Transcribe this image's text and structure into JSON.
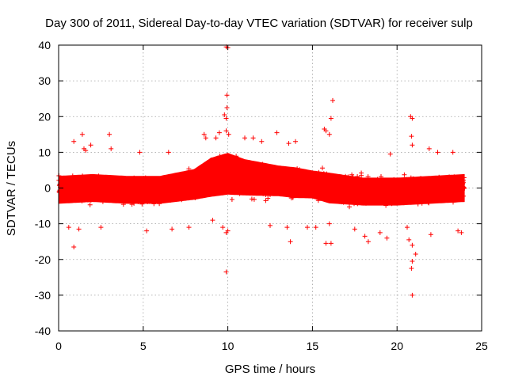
{
  "chart_data": {
    "type": "scatter",
    "title": "Day 300 of 2011, Sidereal Day-to-day VTEC variation (SDTVAR) for receiver sulp",
    "xlabel": "GPS time / hours",
    "ylabel": "SDTVAR / TECUs",
    "xlim": [
      0,
      25
    ],
    "ylim": [
      -40,
      40
    ],
    "xticks": [
      0,
      5,
      10,
      15,
      20,
      25
    ],
    "yticks": [
      -40,
      -30,
      -20,
      -10,
      0,
      10,
      20,
      30,
      40
    ],
    "grid": true,
    "marker": "+",
    "series": [
      {
        "name": "SDTVAR",
        "color": "#ff0000",
        "x_range": [
          0,
          24
        ],
        "band_center": [
          [
            0,
            -0.5
          ],
          [
            2,
            0
          ],
          [
            4,
            -0.5
          ],
          [
            6,
            -0.5
          ],
          [
            8,
            1
          ],
          [
            9,
            3
          ],
          [
            10,
            4
          ],
          [
            11,
            3
          ],
          [
            12,
            2.5
          ],
          [
            13,
            2
          ],
          [
            14,
            1.5
          ],
          [
            15,
            1
          ],
          [
            16,
            0
          ],
          [
            18,
            -1
          ],
          [
            20,
            -1
          ],
          [
            22,
            -0.5
          ],
          [
            24,
            0
          ]
        ],
        "band_halfwidth": [
          [
            0,
            5
          ],
          [
            2,
            5
          ],
          [
            4,
            5
          ],
          [
            6,
            5
          ],
          [
            8,
            5.5
          ],
          [
            9,
            7
          ],
          [
            10,
            7.5
          ],
          [
            11,
            6.5
          ],
          [
            12,
            6
          ],
          [
            13,
            5.5
          ],
          [
            14,
            5.5
          ],
          [
            15,
            5
          ],
          [
            16,
            5.5
          ],
          [
            18,
            5
          ],
          [
            20,
            5
          ],
          [
            22,
            5
          ],
          [
            24,
            5
          ]
        ],
        "outliers": [
          {
            "x": 9.9,
            "y": 39.5
          },
          {
            "x": 10.0,
            "y": 39.3
          },
          {
            "x": 9.95,
            "y": 26
          },
          {
            "x": 9.8,
            "y": 20.5
          },
          {
            "x": 9.9,
            "y": 19.5
          },
          {
            "x": 9.9,
            "y": 16
          },
          {
            "x": 9.95,
            "y": 22.5
          },
          {
            "x": 10.05,
            "y": 15
          },
          {
            "x": 9.9,
            "y": -23.5
          },
          {
            "x": 9.9,
            "y": -12.5
          },
          {
            "x": 10.0,
            "y": -12
          },
          {
            "x": 9.1,
            "y": -9
          },
          {
            "x": 9.7,
            "y": -11
          },
          {
            "x": 16.2,
            "y": 24.5
          },
          {
            "x": 15.8,
            "y": 16
          },
          {
            "x": 16.0,
            "y": 15
          },
          {
            "x": 15.7,
            "y": 16.5
          },
          {
            "x": 16.1,
            "y": 19.5
          },
          {
            "x": 15.8,
            "y": -15.5
          },
          {
            "x": 16.1,
            "y": -15.5
          },
          {
            "x": 15.2,
            "y": -11
          },
          {
            "x": 16.0,
            "y": -10
          },
          {
            "x": 20.8,
            "y": 20
          },
          {
            "x": 20.9,
            "y": 19.5
          },
          {
            "x": 20.85,
            "y": 14.5
          },
          {
            "x": 20.9,
            "y": 12
          },
          {
            "x": 20.7,
            "y": -14.5
          },
          {
            "x": 20.9,
            "y": -16
          },
          {
            "x": 20.9,
            "y": -20.5
          },
          {
            "x": 20.85,
            "y": -22.5
          },
          {
            "x": 21.1,
            "y": -18.5
          },
          {
            "x": 20.9,
            "y": -30
          },
          {
            "x": 20.6,
            "y": -11
          },
          {
            "x": 0.9,
            "y": 13
          },
          {
            "x": 1.4,
            "y": 15
          },
          {
            "x": 1.5,
            "y": 11
          },
          {
            "x": 1.6,
            "y": 10.5
          },
          {
            "x": 1.9,
            "y": 12
          },
          {
            "x": 3.0,
            "y": 15
          },
          {
            "x": 3.1,
            "y": 11
          },
          {
            "x": 0.9,
            "y": -16.5
          },
          {
            "x": 0.6,
            "y": -11
          },
          {
            "x": 1.2,
            "y": -11.5
          },
          {
            "x": 2.5,
            "y": -11
          },
          {
            "x": 4.8,
            "y": 10
          },
          {
            "x": 6.5,
            "y": 10
          },
          {
            "x": 5.2,
            "y": -12
          },
          {
            "x": 6.7,
            "y": -11.5
          },
          {
            "x": 7.7,
            "y": -11
          },
          {
            "x": 8.6,
            "y": 15
          },
          {
            "x": 8.7,
            "y": 14
          },
          {
            "x": 9.3,
            "y": 14
          },
          {
            "x": 9.5,
            "y": 15.5
          },
          {
            "x": 11.0,
            "y": 14
          },
          {
            "x": 11.5,
            "y": 14
          },
          {
            "x": 12.0,
            "y": 13
          },
          {
            "x": 12.9,
            "y": 15.5
          },
          {
            "x": 13.6,
            "y": 12.5
          },
          {
            "x": 14.0,
            "y": 13
          },
          {
            "x": 13.7,
            "y": -15
          },
          {
            "x": 12.5,
            "y": -10.5
          },
          {
            "x": 13.5,
            "y": -11
          },
          {
            "x": 14.7,
            "y": -11
          },
          {
            "x": 17.5,
            "y": -11.5
          },
          {
            "x": 18.1,
            "y": -13.5
          },
          {
            "x": 18.3,
            "y": -15
          },
          {
            "x": 19.0,
            "y": -12.5
          },
          {
            "x": 19.4,
            "y": -14
          },
          {
            "x": 22.0,
            "y": -13
          },
          {
            "x": 23.6,
            "y": -12
          },
          {
            "x": 23.8,
            "y": -12.5
          },
          {
            "x": 19.6,
            "y": 9.5
          },
          {
            "x": 22.4,
            "y": 10
          },
          {
            "x": 23.3,
            "y": 10
          },
          {
            "x": 21.9,
            "y": 11
          }
        ]
      }
    ]
  }
}
